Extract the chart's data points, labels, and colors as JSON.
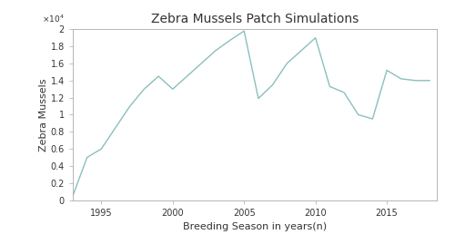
{
  "title": "Zebra Mussels Patch Simulations",
  "xlabel": "Breeding Season in years(n)",
  "ylabel": "Zebra Mussels",
  "x": [
    1993,
    1994,
    1995,
    1996,
    1997,
    1998,
    1999,
    2000,
    2001,
    2002,
    2003,
    2004,
    2005,
    2006,
    2007,
    2008,
    2009,
    2010,
    2011,
    2012,
    2013,
    2014,
    2015,
    2016,
    2017,
    2018
  ],
  "y": [
    500,
    5000,
    6000,
    8500,
    11000,
    13000,
    14500,
    13000,
    14500,
    16000,
    17500,
    18700,
    19800,
    11900,
    13500,
    16000,
    17500,
    19000,
    13300,
    12600,
    10000,
    9500,
    15200,
    14200,
    14000,
    14000
  ],
  "line_color": "#8abfbe",
  "line_width": 1.0,
  "xlim": [
    1993,
    2018.5
  ],
  "ylim": [
    0,
    20000
  ],
  "xticks": [
    1995,
    2000,
    2005,
    2010,
    2015
  ],
  "ytick_values": [
    0,
    2000,
    4000,
    6000,
    8000,
    10000,
    12000,
    14000,
    16000,
    18000,
    20000
  ],
  "ytick_labels": [
    "0",
    "0.2",
    "0.4",
    "0.6",
    "0.8",
    "1",
    "1.2",
    "1.4",
    "1.6",
    "1.8",
    "2"
  ],
  "scale_label": "\\times 10^4",
  "title_fontsize": 10,
  "label_fontsize": 8,
  "tick_fontsize": 7,
  "spine_color": "#aaaaaa",
  "background_color": "#ffffff"
}
